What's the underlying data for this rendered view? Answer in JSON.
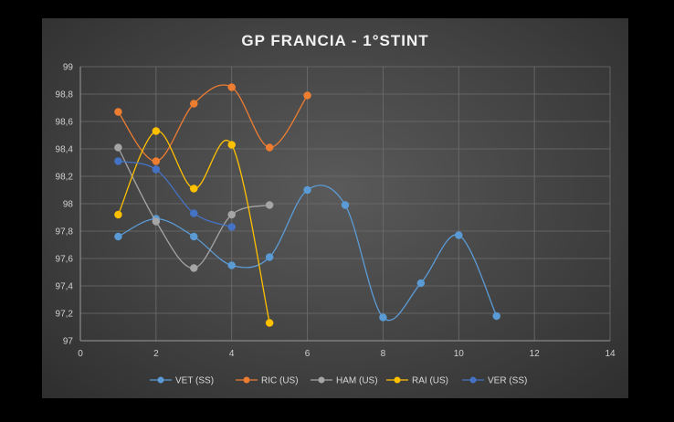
{
  "chart_data": {
    "type": "line",
    "title": "GP FRANCIA - 1°STINT",
    "xlim": [
      0,
      14
    ],
    "ylim": [
      97,
      99
    ],
    "xticks": [
      0,
      2,
      4,
      6,
      8,
      10,
      12,
      14
    ],
    "yticks": [
      "97",
      "97,2",
      "97,4",
      "97,6",
      "97,8",
      "98",
      "98,2",
      "98,4",
      "98,6",
      "98,8",
      "99"
    ],
    "grid": true,
    "smooth": true,
    "legend_position": "bottom",
    "series": [
      {
        "name": "VET (SS)",
        "color": "#5b9bd5",
        "x": [
          1,
          2,
          3,
          4,
          5,
          6,
          7,
          8,
          9,
          10,
          11
        ],
        "y": [
          97.76,
          97.89,
          97.76,
          97.55,
          97.61,
          98.1,
          97.99,
          97.17,
          97.42,
          97.77,
          97.18
        ]
      },
      {
        "name": "RIC (US)",
        "color": "#ed7d31",
        "x": [
          1,
          2,
          3,
          4,
          5,
          6
        ],
        "y": [
          98.67,
          98.31,
          98.73,
          98.85,
          98.41,
          98.79
        ]
      },
      {
        "name": "HAM (US)",
        "color": "#a5a5a5",
        "x": [
          1,
          2,
          3,
          4,
          5
        ],
        "y": [
          98.41,
          97.87,
          97.53,
          97.92,
          97.99
        ]
      },
      {
        "name": "RAI (US)",
        "color": "#ffc000",
        "x": [
          1,
          2,
          3,
          4,
          5
        ],
        "y": [
          97.92,
          98.53,
          98.11,
          98.43,
          97.13
        ]
      },
      {
        "name": "VER (SS)",
        "color": "#4472c4",
        "x": [
          1,
          2,
          3,
          4
        ],
        "y": [
          98.31,
          98.25,
          97.93,
          97.83
        ]
      }
    ]
  }
}
